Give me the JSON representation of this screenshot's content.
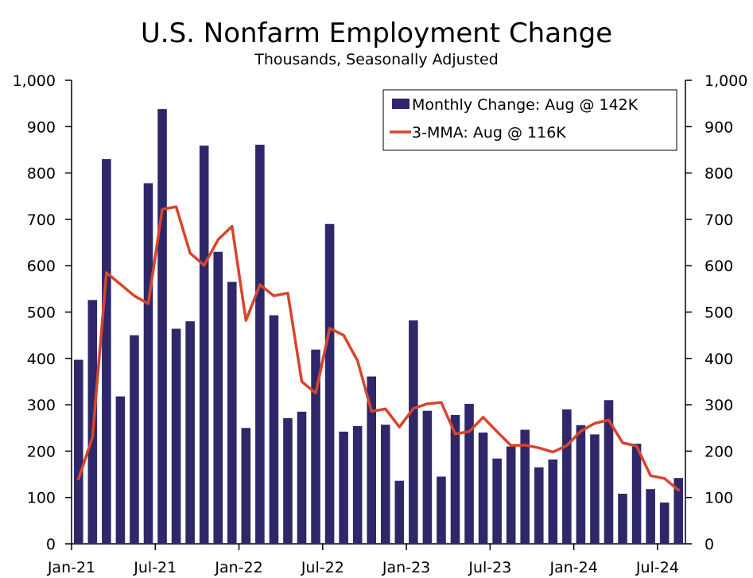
{
  "chart_data": {
    "type": "bar",
    "title": "U.S. Nonfarm Employment Change",
    "subtitle": "Thousands, Seasonally Adjusted",
    "xlabel": "",
    "ylabel": "",
    "ylim": [
      0,
      1000
    ],
    "yticks": [
      0,
      100,
      200,
      300,
      400,
      500,
      600,
      700,
      800,
      900,
      1000
    ],
    "ytick_labels": [
      "0",
      "100",
      "200",
      "300",
      "400",
      "500",
      "600",
      "700",
      "800",
      "900",
      "1,000"
    ],
    "categories": [
      "Jan-21",
      "Feb-21",
      "Mar-21",
      "Apr-21",
      "May-21",
      "Jun-21",
      "Jul-21",
      "Aug-21",
      "Sep-21",
      "Oct-21",
      "Nov-21",
      "Dec-21",
      "Jan-22",
      "Feb-22",
      "Mar-22",
      "Apr-22",
      "May-22",
      "Jun-22",
      "Jul-22",
      "Aug-22",
      "Sep-22",
      "Oct-22",
      "Nov-22",
      "Dec-22",
      "Jan-23",
      "Feb-23",
      "Mar-23",
      "Apr-23",
      "May-23",
      "Jun-23",
      "Jul-23",
      "Aug-23",
      "Sep-23",
      "Oct-23",
      "Nov-23",
      "Dec-23",
      "Jan-24",
      "Feb-24",
      "Mar-24",
      "Apr-24",
      "May-24",
      "Jun-24",
      "Jul-24",
      "Aug-24"
    ],
    "xtick_labels": [
      {
        "index": 0,
        "label": "Jan-21"
      },
      {
        "index": 6,
        "label": "Jul-21"
      },
      {
        "index": 12,
        "label": "Jan-22"
      },
      {
        "index": 18,
        "label": "Jul-22"
      },
      {
        "index": 24,
        "label": "Jan-23"
      },
      {
        "index": 30,
        "label": "Jul-23"
      },
      {
        "index": 36,
        "label": "Jan-24"
      },
      {
        "index": 42,
        "label": "Jul-24"
      }
    ],
    "series": [
      {
        "name": "Monthly Change: Aug @ 142K",
        "type": "bar",
        "color": "#2e2769",
        "values": [
          397,
          526,
          830,
          318,
          450,
          778,
          938,
          464,
          480,
          859,
          630,
          565,
          250,
          861,
          493,
          271,
          285,
          419,
          690,
          242,
          254,
          361,
          257,
          136,
          482,
          287,
          145,
          278,
          302,
          240,
          184,
          210,
          246,
          165,
          182,
          290,
          256,
          236,
          310,
          108,
          216,
          118,
          89,
          142
        ]
      },
      {
        "name": "3-MMA: Aug @ 116K",
        "type": "line",
        "color": "#d7452b",
        "values": [
          140,
          230,
          585,
          560,
          535,
          518,
          722,
          727,
          627,
          601,
          656,
          685,
          482,
          559,
          535,
          541,
          350,
          325,
          465,
          450,
          395,
          286,
          291,
          252,
          292,
          302,
          305,
          237,
          242,
          273,
          242,
          212,
          213,
          207,
          198,
          212,
          243,
          260,
          267,
          218,
          211,
          147,
          141,
          116
        ]
      }
    ],
    "legend": {
      "position": "top-right"
    }
  }
}
